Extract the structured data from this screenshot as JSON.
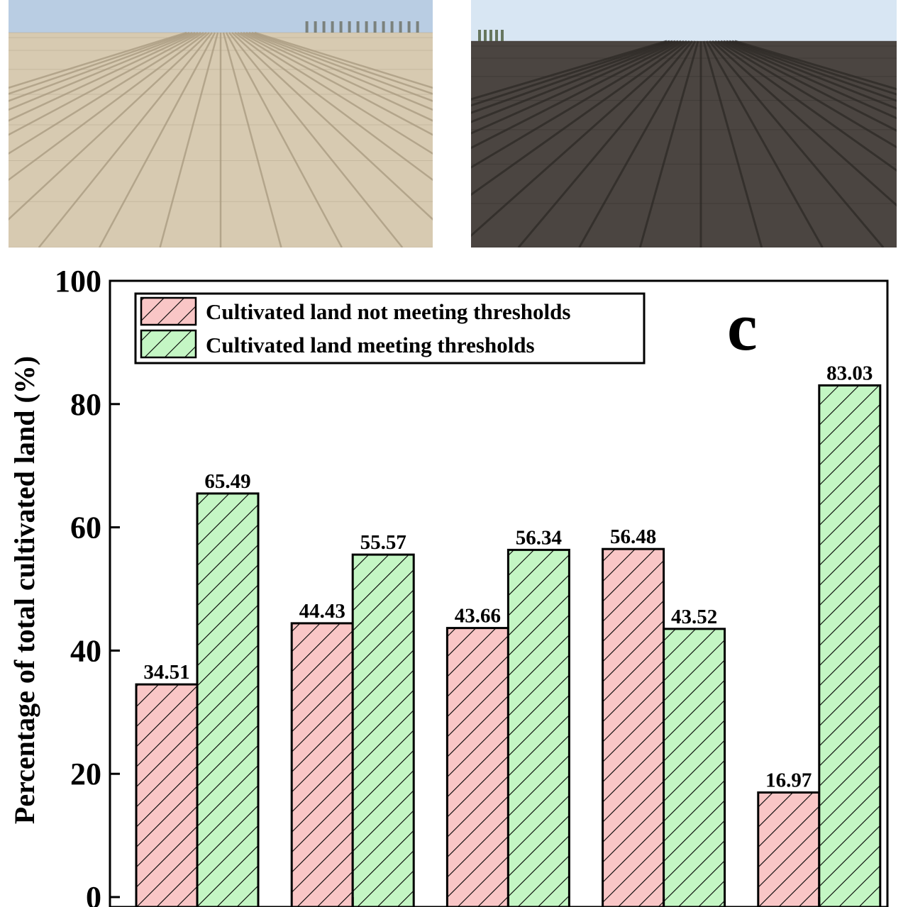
{
  "photos": [
    {
      "name": "photo-straw-covered-field",
      "sky": "#b9cde3",
      "ground": "#d7cab1",
      "furrow": "#a8997f"
    },
    {
      "name": "photo-dark-tilled-field",
      "sky": "#d8e6f3",
      "ground": "#4b4541",
      "furrow": "#2d2926"
    }
  ],
  "chart_data": {
    "type": "bar",
    "panel_label": "c",
    "title": "",
    "xlabel": "",
    "ylabel": "Percentage of total cultivated land (%)",
    "ylim": [
      0,
      100
    ],
    "yticks": [
      0,
      20,
      40,
      60,
      80,
      100
    ],
    "categories": [
      "",
      "",
      "",
      "",
      ""
    ],
    "series": [
      {
        "name": "Cultivated land not meeting thresholds",
        "color": "#f9c6c6",
        "values": [
          34.51,
          44.43,
          43.66,
          56.48,
          16.97
        ]
      },
      {
        "name": "Cultivated land meeting thresholds",
        "color": "#c4f6c4",
        "values": [
          65.49,
          55.57,
          56.34,
          43.52,
          83.03
        ]
      }
    ],
    "value_labels": [
      [
        "34.51",
        "44.43",
        "43.66",
        "56.48",
        "16.97"
      ],
      [
        "65.49",
        "55.57",
        "56.34",
        "43.52",
        "83.03"
      ]
    ],
    "legend_position": "top-left",
    "grid": false,
    "hatch": "diagonal"
  }
}
